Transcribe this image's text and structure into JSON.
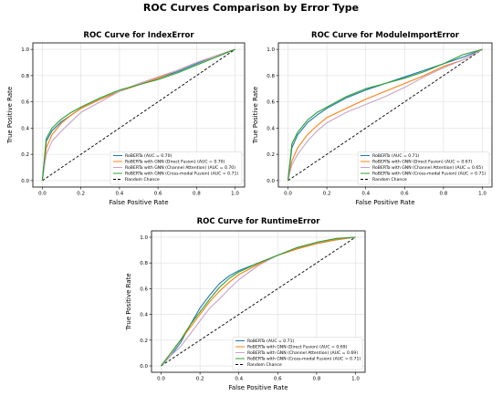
{
  "figure_title": "ROC Curves Comparison by Error Type",
  "colors": {
    "roberta": "#1f77b4",
    "direct_fusion": "#ff7f0e",
    "channel_attention": "#c8a2c8",
    "cross_modal": "#2ca02c",
    "random": "#000000",
    "grid": "#dddddd"
  },
  "chart_data": [
    {
      "type": "line",
      "title": "ROC Curve for IndexError",
      "xlabel": "False Positive Rate",
      "ylabel": "True Positive Rate",
      "xlim": [
        0,
        1
      ],
      "ylim": [
        0,
        1
      ],
      "xticks": [
        "0.0",
        "0.2",
        "0.4",
        "0.6",
        "0.8",
        "1.0"
      ],
      "yticks": [
        "0.0",
        "0.2",
        "0.4",
        "0.6",
        "0.8",
        "1.0"
      ],
      "grid": true,
      "legend_position": "lower-right",
      "series": [
        {
          "name": "RoBERTa (AUC = 0.70)",
          "color_key": "roberta",
          "x": [
            0,
            0.02,
            0.05,
            0.1,
            0.15,
            0.2,
            0.3,
            0.4,
            0.5,
            0.6,
            0.7,
            0.8,
            0.9,
            1.0
          ],
          "y": [
            0,
            0.3,
            0.38,
            0.45,
            0.5,
            0.55,
            0.62,
            0.68,
            0.73,
            0.78,
            0.83,
            0.89,
            0.95,
            1.0
          ]
        },
        {
          "name": "RoBERTa with GNN (Direct Fusion) (AUC = 0.70)",
          "color_key": "direct_fusion",
          "x": [
            0,
            0.02,
            0.05,
            0.1,
            0.15,
            0.2,
            0.3,
            0.4,
            0.5,
            0.6,
            0.7,
            0.8,
            0.9,
            1.0
          ],
          "y": [
            0,
            0.25,
            0.35,
            0.44,
            0.5,
            0.55,
            0.62,
            0.68,
            0.73,
            0.78,
            0.84,
            0.9,
            0.95,
            1.0
          ]
        },
        {
          "name": "RoBERTa with GNN (Channel Attention) (AUC = 0.70)",
          "color_key": "channel_attention",
          "x": [
            0,
            0.02,
            0.05,
            0.1,
            0.15,
            0.2,
            0.3,
            0.4,
            0.5,
            0.6,
            0.7,
            0.8,
            0.9,
            1.0
          ],
          "y": [
            0,
            0.2,
            0.3,
            0.38,
            0.45,
            0.52,
            0.6,
            0.68,
            0.74,
            0.79,
            0.84,
            0.9,
            0.95,
            1.0
          ]
        },
        {
          "name": "RoBERTa with GNN (Cross-modal Fusion) (AUC = 0.71)",
          "color_key": "cross_modal",
          "x": [
            0,
            0.02,
            0.05,
            0.1,
            0.15,
            0.2,
            0.3,
            0.4,
            0.5,
            0.6,
            0.7,
            0.8,
            0.9,
            1.0
          ],
          "y": [
            0,
            0.32,
            0.4,
            0.47,
            0.52,
            0.56,
            0.63,
            0.69,
            0.73,
            0.77,
            0.82,
            0.88,
            0.94,
            1.0
          ]
        }
      ],
      "reference_line": {
        "name": "Random Chance",
        "x": [
          0,
          1
        ],
        "y": [
          0,
          1
        ]
      }
    },
    {
      "type": "line",
      "title": "ROC Curve for ModuleImportError",
      "xlabel": "False Positive Rate",
      "ylabel": "True Positive Rate",
      "xlim": [
        0,
        1
      ],
      "ylim": [
        0,
        1
      ],
      "xticks": [
        "0.0",
        "0.2",
        "0.4",
        "0.6",
        "0.8",
        "1.0"
      ],
      "yticks": [
        "0.0",
        "0.2",
        "0.4",
        "0.6",
        "0.8",
        "1.0"
      ],
      "grid": true,
      "legend_position": "lower-right",
      "series": [
        {
          "name": "RoBERTa (AUC = 0.71)",
          "color_key": "roberta",
          "x": [
            0,
            0.02,
            0.05,
            0.1,
            0.15,
            0.2,
            0.3,
            0.4,
            0.5,
            0.6,
            0.7,
            0.8,
            0.9,
            1.0
          ],
          "y": [
            0,
            0.25,
            0.35,
            0.44,
            0.5,
            0.55,
            0.63,
            0.69,
            0.74,
            0.79,
            0.84,
            0.89,
            0.94,
            1.0
          ]
        },
        {
          "name": "RoBERTa with GNN (Direct Fusion) (AUC = 0.67)",
          "color_key": "direct_fusion",
          "x": [
            0,
            0.02,
            0.05,
            0.1,
            0.15,
            0.2,
            0.3,
            0.4,
            0.5,
            0.6,
            0.7,
            0.8,
            0.9,
            1.0
          ],
          "y": [
            0,
            0.15,
            0.25,
            0.35,
            0.42,
            0.48,
            0.55,
            0.62,
            0.68,
            0.74,
            0.8,
            0.87,
            0.92,
            1.0
          ]
        },
        {
          "name": "RoBERTa with GNN (Channel Attention) (AUC = 0.65)",
          "color_key": "channel_attention",
          "x": [
            0,
            0.02,
            0.05,
            0.1,
            0.15,
            0.2,
            0.3,
            0.4,
            0.5,
            0.6,
            0.7,
            0.8,
            0.9,
            1.0
          ],
          "y": [
            0,
            0.12,
            0.2,
            0.3,
            0.38,
            0.44,
            0.52,
            0.58,
            0.64,
            0.71,
            0.79,
            0.86,
            0.92,
            1.0
          ]
        },
        {
          "name": "RoBERTa with GNN (Cross-modal Fusion) (AUC = 0.71)",
          "color_key": "cross_modal",
          "x": [
            0,
            0.02,
            0.05,
            0.1,
            0.15,
            0.2,
            0.3,
            0.4,
            0.5,
            0.6,
            0.7,
            0.8,
            0.9,
            1.0
          ],
          "y": [
            0,
            0.28,
            0.37,
            0.46,
            0.52,
            0.56,
            0.64,
            0.7,
            0.74,
            0.78,
            0.83,
            0.89,
            0.96,
            1.0
          ]
        }
      ],
      "reference_line": {
        "name": "Random Chance",
        "x": [
          0,
          1
        ],
        "y": [
          0,
          1
        ]
      }
    },
    {
      "type": "line",
      "title": "ROC Curve for RuntimeError",
      "xlabel": "False Positive Rate",
      "ylabel": "True Positive Rate",
      "xlim": [
        0,
        1
      ],
      "ylim": [
        0,
        1
      ],
      "xticks": [
        "0.0",
        "0.2",
        "0.4",
        "0.6",
        "0.8",
        "1.0"
      ],
      "yticks": [
        "0.0",
        "0.2",
        "0.4",
        "0.6",
        "0.8",
        "1.0"
      ],
      "grid": true,
      "legend_position": "lower-right",
      "series": [
        {
          "name": "RoBERTa (AUC = 0.71)",
          "color_key": "roberta",
          "x": [
            0,
            0.05,
            0.1,
            0.15,
            0.2,
            0.25,
            0.3,
            0.35,
            0.4,
            0.5,
            0.6,
            0.7,
            0.8,
            0.9,
            1.0
          ],
          "y": [
            0,
            0.08,
            0.18,
            0.32,
            0.45,
            0.55,
            0.64,
            0.7,
            0.74,
            0.8,
            0.86,
            0.91,
            0.95,
            0.98,
            1.0
          ]
        },
        {
          "name": "RoBERTa with GNN (Direct Fusion) (AUC = 0.69)",
          "color_key": "direct_fusion",
          "x": [
            0,
            0.05,
            0.1,
            0.15,
            0.2,
            0.25,
            0.3,
            0.35,
            0.4,
            0.5,
            0.6,
            0.7,
            0.8,
            0.9,
            1.0
          ],
          "y": [
            0,
            0.1,
            0.2,
            0.3,
            0.4,
            0.5,
            0.58,
            0.65,
            0.71,
            0.79,
            0.86,
            0.91,
            0.95,
            0.98,
            1.0
          ]
        },
        {
          "name": "RoBERTa with GNN (Channel Attention) (AUC = 0.69)",
          "color_key": "channel_attention",
          "x": [
            0,
            0.05,
            0.1,
            0.15,
            0.2,
            0.25,
            0.3,
            0.35,
            0.4,
            0.5,
            0.6,
            0.7,
            0.8,
            0.9,
            1.0
          ],
          "y": [
            0,
            0.08,
            0.15,
            0.25,
            0.35,
            0.45,
            0.52,
            0.6,
            0.67,
            0.78,
            0.86,
            0.92,
            0.96,
            0.99,
            1.0
          ]
        },
        {
          "name": "RoBERTa with GNN (Cross-modal Fusion) (AUC = 0.71)",
          "color_key": "cross_modal",
          "x": [
            0,
            0.05,
            0.1,
            0.15,
            0.2,
            0.25,
            0.3,
            0.35,
            0.4,
            0.5,
            0.6,
            0.7,
            0.8,
            0.9,
            1.0
          ],
          "y": [
            0,
            0.1,
            0.2,
            0.32,
            0.42,
            0.52,
            0.61,
            0.68,
            0.73,
            0.8,
            0.86,
            0.92,
            0.96,
            0.99,
            1.0
          ]
        }
      ],
      "reference_line": {
        "name": "Random Chance",
        "x": [
          0,
          1
        ],
        "y": [
          0,
          1
        ]
      }
    }
  ]
}
